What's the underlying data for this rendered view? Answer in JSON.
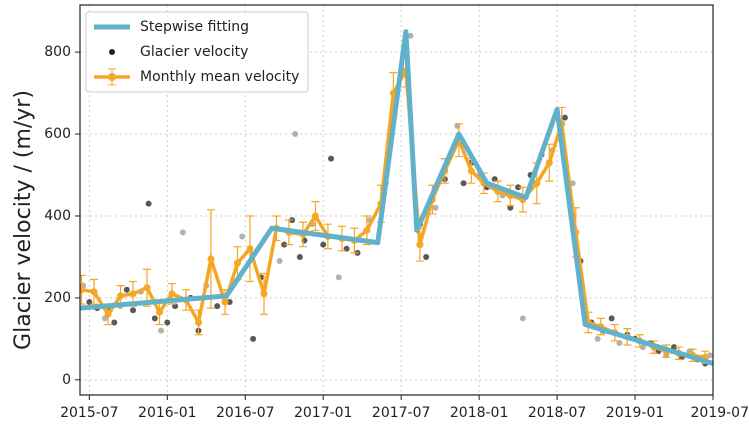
{
  "chart_data": {
    "type": "line",
    "y_label": "Glacier velocity / (m/yr)",
    "xlim": [
      2015.44,
      2019.5
    ],
    "ylim": [
      -37,
      915
    ],
    "grid": true,
    "legend": "upper left",
    "xticks": [
      {
        "value": 2015.5,
        "label": "2015-07"
      },
      {
        "value": 2016.0,
        "label": "2016-01"
      },
      {
        "value": 2016.5,
        "label": "2016-07"
      },
      {
        "value": 2017.0,
        "label": "2017-01"
      },
      {
        "value": 2017.5,
        "label": "2017-07"
      },
      {
        "value": 2018.0,
        "label": "2018-01"
      },
      {
        "value": 2018.5,
        "label": "2018-07"
      },
      {
        "value": 2019.0,
        "label": "2019-01"
      },
      {
        "value": 2019.5,
        "label": "2019-07"
      }
    ],
    "yticks": [
      0,
      200,
      400,
      600,
      800
    ],
    "series": [
      {
        "name": "Stepwise fitting",
        "type": "line",
        "color": "#62b1cb",
        "x": [
          2015.44,
          2016.38,
          2016.67,
          2017.35,
          2017.53,
          2017.6,
          2017.87,
          2018.05,
          2018.3,
          2018.5,
          2018.68,
          2019.5
        ],
        "values": [
          175,
          205,
          370,
          335,
          850,
          365,
          600,
          480,
          445,
          660,
          135,
          40
        ]
      },
      {
        "name": "Glacier velocity",
        "type": "scatter",
        "color": "#222222",
        "x": [
          2015.46,
          2015.5,
          2015.55,
          2015.6,
          2015.63,
          2015.66,
          2015.7,
          2015.74,
          2015.78,
          2015.83,
          2015.88,
          2015.92,
          2015.96,
          2016.0,
          2016.05,
          2016.1,
          2016.15,
          2016.2,
          2016.25,
          2016.32,
          2016.4,
          2016.48,
          2016.55,
          2016.6,
          2016.72,
          2016.75,
          2016.8,
          2016.82,
          2016.85,
          2016.88,
          2016.93,
          2017.0,
          2017.05,
          2017.1,
          2017.15,
          2017.22,
          2017.3,
          2017.4,
          2017.45,
          2017.56,
          2017.62,
          2017.66,
          2017.72,
          2017.78,
          2017.83,
          2017.86,
          2017.9,
          2017.95,
          2018.0,
          2018.05,
          2018.1,
          2018.15,
          2018.2,
          2018.25,
          2018.28,
          2018.33,
          2018.4,
          2018.47,
          2018.52,
          2018.55,
          2018.6,
          2018.65,
          2018.72,
          2018.76,
          2018.8,
          2018.85,
          2018.9,
          2018.95,
          2019.0,
          2019.05,
          2019.1,
          2019.15,
          2019.2,
          2019.25,
          2019.3,
          2019.35,
          2019.4,
          2019.45,
          2019.48
        ],
        "values": [
          230,
          190,
          175,
          150,
          170,
          140,
          180,
          220,
          170,
          215,
          430,
          150,
          120,
          140,
          180,
          360,
          200,
          120,
          230,
          180,
          190,
          350,
          100,
          250,
          290,
          330,
          390,
          600,
          300,
          340,
          380,
          330,
          540,
          250,
          320,
          310,
          390,
          480,
          650,
          840,
          380,
          300,
          420,
          490,
          560,
          620,
          480,
          530,
          500,
          470,
          490,
          450,
          420,
          470,
          150,
          500,
          550,
          560,
          600,
          640,
          480,
          290,
          140,
          100,
          120,
          150,
          90,
          110,
          100,
          80,
          90,
          70,
          60,
          80,
          55,
          70,
          50,
          40,
          60
        ]
      },
      {
        "name": "Monthly mean velocity",
        "type": "errorbar",
        "color": "#f5a623",
        "x": [
          2015.45,
          2015.53,
          2015.62,
          2015.7,
          2015.78,
          2015.87,
          2015.95,
          2016.03,
          2016.12,
          2016.2,
          2016.28,
          2016.37,
          2016.45,
          2016.53,
          2016.62,
          2016.7,
          2016.78,
          2016.87,
          2016.95,
          2017.03,
          2017.12,
          2017.2,
          2017.28,
          2017.37,
          2017.45,
          2017.53,
          2017.62,
          2017.7,
          2017.78,
          2017.87,
          2017.95,
          2018.03,
          2018.12,
          2018.2,
          2018.28,
          2018.37,
          2018.45,
          2018.53,
          2018.62,
          2018.7,
          2018.78,
          2018.87,
          2018.95,
          2019.03,
          2019.12,
          2019.2,
          2019.28,
          2019.37,
          2019.45
        ],
        "values": [
          220,
          215,
          160,
          205,
          210,
          225,
          165,
          210,
          195,
          140,
          295,
          190,
          285,
          320,
          210,
          370,
          360,
          355,
          400,
          350,
          345,
          340,
          365,
          430,
          700,
          755,
          330,
          440,
          510,
          585,
          510,
          480,
          460,
          450,
          440,
          480,
          530,
          625,
          360,
          140,
          130,
          115,
          105,
          95,
          80,
          70,
          65,
          60,
          55
        ],
        "errors": [
          35,
          30,
          25,
          25,
          30,
          45,
          30,
          25,
          25,
          30,
          120,
          30,
          40,
          80,
          50,
          30,
          30,
          30,
          35,
          30,
          30,
          30,
          35,
          45,
          50,
          40,
          40,
          35,
          30,
          40,
          30,
          25,
          25,
          25,
          30,
          50,
          45,
          40,
          60,
          25,
          20,
          20,
          20,
          15,
          15,
          15,
          15,
          15,
          15
        ]
      }
    ]
  }
}
